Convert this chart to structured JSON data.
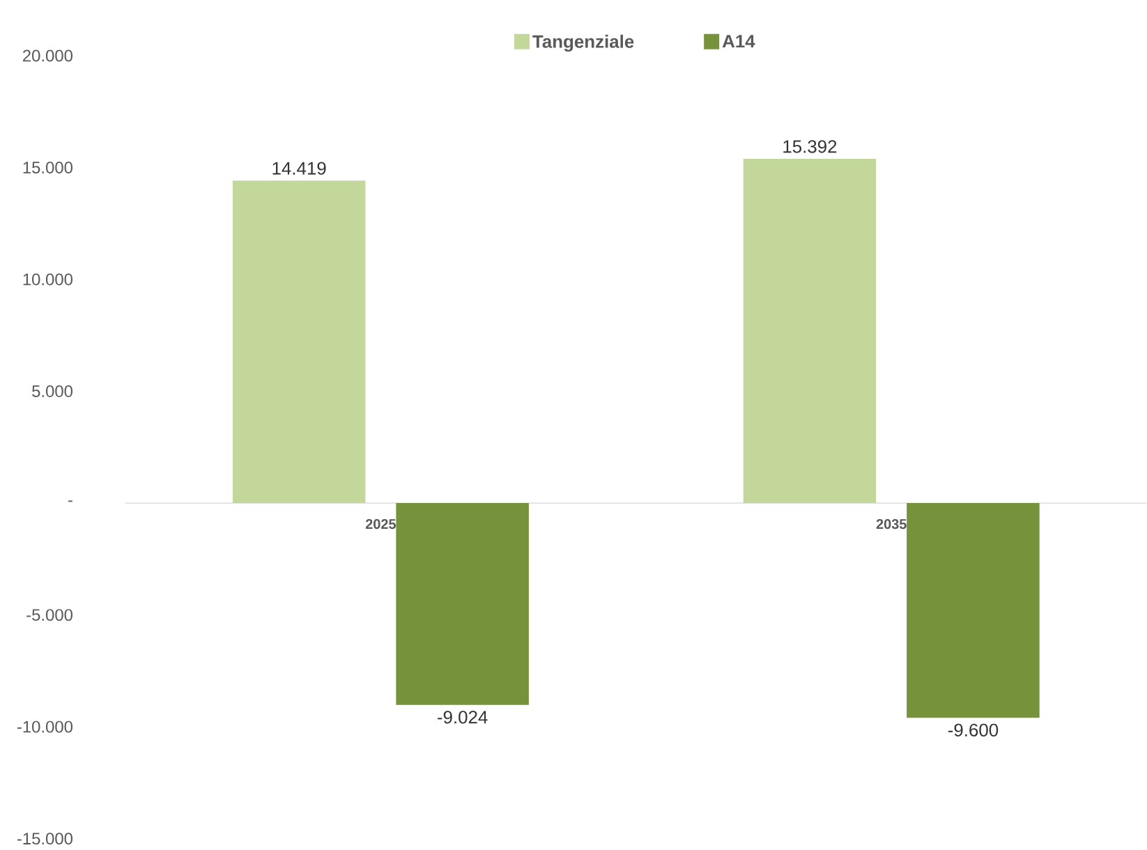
{
  "chart_data": {
    "type": "bar",
    "categories": [
      "2025",
      "2035"
    ],
    "series": [
      {
        "name": "Tangenziale",
        "color": "#c4d79b",
        "values": [
          14419,
          15392
        ],
        "value_labels": [
          "14.419",
          "15.392"
        ]
      },
      {
        "name": "A14",
        "color": "#76933c",
        "values": [
          -9024,
          -9600
        ],
        "value_labels": [
          "-9.024",
          "-9.600"
        ]
      }
    ],
    "ylim": [
      -15000,
      20000
    ],
    "yticks": [
      {
        "value": -15000,
        "label": "-15.000"
      },
      {
        "value": -10000,
        "label": "-10.000"
      },
      {
        "value": -5000,
        "label": "-5.000"
      },
      {
        "value": 0,
        "label": "-"
      },
      {
        "value": 5000,
        "label": "5.000"
      },
      {
        "value": 10000,
        "label": "10.000"
      },
      {
        "value": 15000,
        "label": "15.000"
      },
      {
        "value": 20000,
        "label": "20.000"
      }
    ],
    "legend": "top",
    "grid": false
  }
}
